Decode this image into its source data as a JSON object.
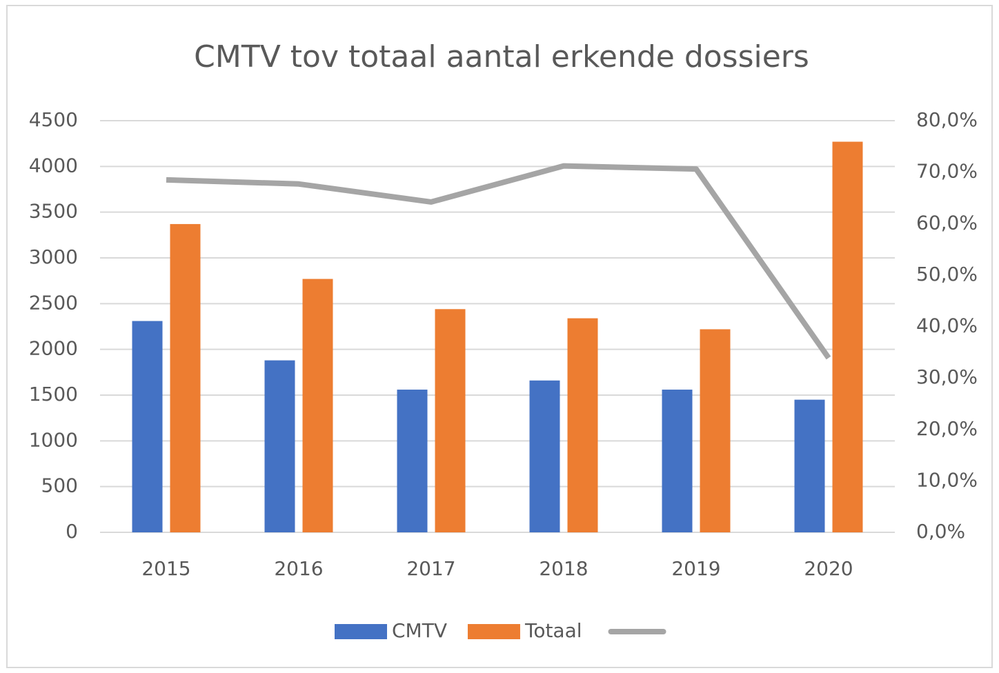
{
  "chart_data": {
    "type": "bar",
    "title": "CMTV tov totaal aantal erkende dossiers",
    "categories": [
      "2015",
      "2016",
      "2017",
      "2018",
      "2019",
      "2020"
    ],
    "series": [
      {
        "name": "CMTV",
        "color": "#4472c4",
        "type": "bar",
        "values": [
          2310,
          1880,
          1560,
          1660,
          1560,
          1450
        ]
      },
      {
        "name": "Totaal",
        "color": "#ed7d31",
        "type": "bar",
        "values": [
          3370,
          2770,
          2440,
          2340,
          2220,
          4270
        ]
      },
      {
        "color": "#a5a5a5",
        "type": "line",
        "axis": "y2",
        "values": [
          68.5,
          67.7,
          64.2,
          71.2,
          70.6,
          33.9
        ]
      }
    ],
    "ylim": [
      0,
      4500
    ],
    "yticks": [
      0,
      500,
      1000,
      1500,
      2000,
      2500,
      3000,
      3500,
      4000,
      4500
    ],
    "y2lim": [
      0,
      80
    ],
    "y2ticks": [
      {
        "value": 0,
        "label": "0,0%"
      },
      {
        "value": 10,
        "label": "10,0%"
      },
      {
        "value": 20,
        "label": "20,0%"
      },
      {
        "value": 30,
        "label": "30,0%"
      },
      {
        "value": 40,
        "label": "40,0%"
      },
      {
        "value": 50,
        "label": "50,0%"
      },
      {
        "value": 60,
        "label": "60,0%"
      },
      {
        "value": 70,
        "label": "70,0%"
      },
      {
        "value": 80,
        "label": "80,0%"
      }
    ],
    "grid": true,
    "legend": "bottom"
  }
}
